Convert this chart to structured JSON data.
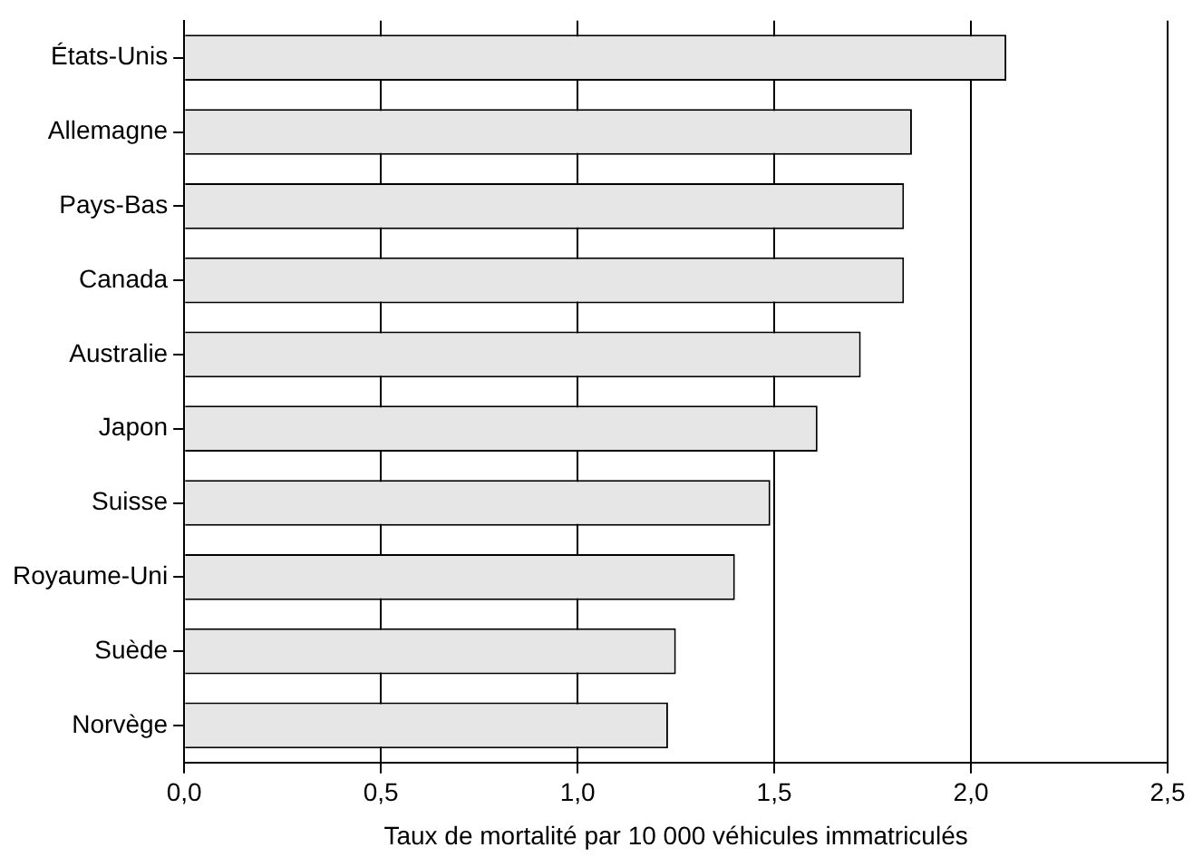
{
  "chart_data": {
    "type": "bar",
    "orientation": "horizontal",
    "xlabel": "Taux de mortalité par 10 000 véhicules immatriculés",
    "categories": [
      "États-Unis",
      "Allemagne",
      "Pays-Bas",
      "Canada",
      "Australie",
      "Japon",
      "Suisse",
      "Royaume-Uni",
      "Suède",
      "Norvège"
    ],
    "values": [
      2.09,
      1.85,
      1.83,
      1.83,
      1.72,
      1.61,
      1.49,
      1.4,
      1.25,
      1.23
    ],
    "color": "#e6e6e6",
    "xlim": [
      0,
      2.5
    ],
    "xticks": [
      {
        "value": 0,
        "label": "0,0"
      },
      {
        "value": 0.5,
        "label": "0,5"
      },
      {
        "value": 1,
        "label": "1,0"
      },
      {
        "value": 1.5,
        "label": "1,5"
      },
      {
        "value": 2,
        "label": "2,0"
      },
      {
        "value": 2.5,
        "label": "2,5"
      }
    ],
    "grid": "x",
    "legend": false
  }
}
